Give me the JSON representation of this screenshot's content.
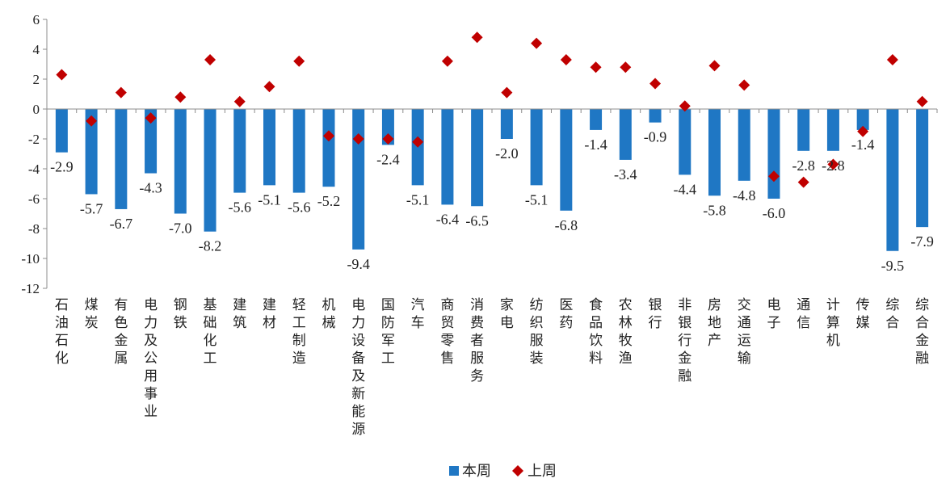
{
  "chart_data": {
    "type": "bar",
    "title": "",
    "xlabel": "",
    "ylabel": "",
    "ylim": [
      -12,
      6
    ],
    "yticks": [
      6,
      4,
      2,
      0,
      -2,
      -4,
      -6,
      -8,
      -10,
      -12
    ],
    "categories": [
      "石油石化",
      "煤炭",
      "有色金属",
      "电力及公用事业",
      "钢铁",
      "基础化工",
      "建筑",
      "建材",
      "轻工制造",
      "机械",
      "电力设备及新能源",
      "国防军工",
      "汽车",
      "商贸零售",
      "消费者服务",
      "家电",
      "纺织服装",
      "医药",
      "食品饮料",
      "农林牧渔",
      "银行",
      "非银行金融",
      "房地产",
      "交通运输",
      "电子",
      "通信",
      "计算机",
      "传媒",
      "综合",
      "综合金融"
    ],
    "series": [
      {
        "name": "本周",
        "kind": "bar",
        "color": "#1f77c4",
        "values": [
          -2.9,
          -5.7,
          -6.7,
          -4.3,
          -7.0,
          -8.2,
          -5.6,
          -5.1,
          -5.6,
          -5.2,
          -9.4,
          -2.4,
          -5.1,
          -6.4,
          -6.5,
          -2.0,
          -5.1,
          -6.8,
          -1.4,
          -3.4,
          -0.9,
          -4.4,
          -5.8,
          -4.8,
          -6.0,
          -2.8,
          -2.8,
          -1.4,
          -9.5,
          -7.9
        ],
        "labels": [
          "-2.9",
          "-5.7",
          "-6.7",
          "-4.3",
          "-7.0",
          "-8.2",
          "-5.6",
          "-5.1",
          "-5.6",
          "-5.2",
          "-9.4",
          "-2.4",
          "-5.1",
          "-6.4",
          "-6.5",
          "-2.0",
          "-5.1",
          "-6.8",
          "-1.4",
          "-3.4",
          "-0.9",
          "-4.4",
          "-5.8",
          "-4.8",
          "-6.0",
          "-2.8",
          "-2.8",
          "-1.4",
          "-9.5",
          "-7.9"
        ]
      },
      {
        "name": "上周",
        "kind": "scatter",
        "marker": "diamond",
        "color": "#c00000",
        "values": [
          2.3,
          -0.8,
          1.1,
          -0.6,
          0.8,
          3.3,
          0.5,
          1.5,
          3.2,
          -1.8,
          -2.0,
          -2.0,
          -2.2,
          3.2,
          4.8,
          1.1,
          4.4,
          3.3,
          2.8,
          2.8,
          1.7,
          0.2,
          2.9,
          1.6,
          -4.5,
          -4.9,
          -3.7,
          -1.5,
          3.3,
          0.5
        ]
      }
    ],
    "legend": {
      "position": "bottom"
    },
    "grid": false
  }
}
